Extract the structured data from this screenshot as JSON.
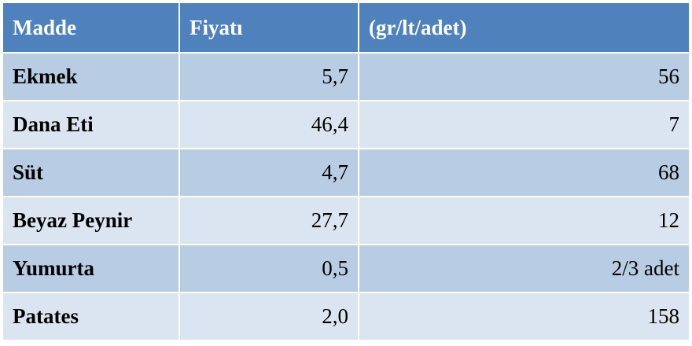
{
  "table": {
    "headers": [
      "Madde",
      "Fiyatı",
      "(gr/lt/adet)"
    ],
    "rows": [
      [
        "Ekmek",
        "5,7",
        "56"
      ],
      [
        "Dana Eti",
        "46,4",
        "7"
      ],
      [
        "Süt",
        "4,7",
        "68"
      ],
      [
        "Beyaz Peynir",
        "27,7",
        "12"
      ],
      [
        "Yumurta",
        "0,5",
        "2/3 adet"
      ],
      [
        "Patates",
        "2,0",
        "158"
      ]
    ]
  },
  "colors": {
    "header_bg": "#4f81bd",
    "header_text": "#ffffff",
    "row_dark": "#b8cce4",
    "row_light": "#dbe5f1"
  }
}
